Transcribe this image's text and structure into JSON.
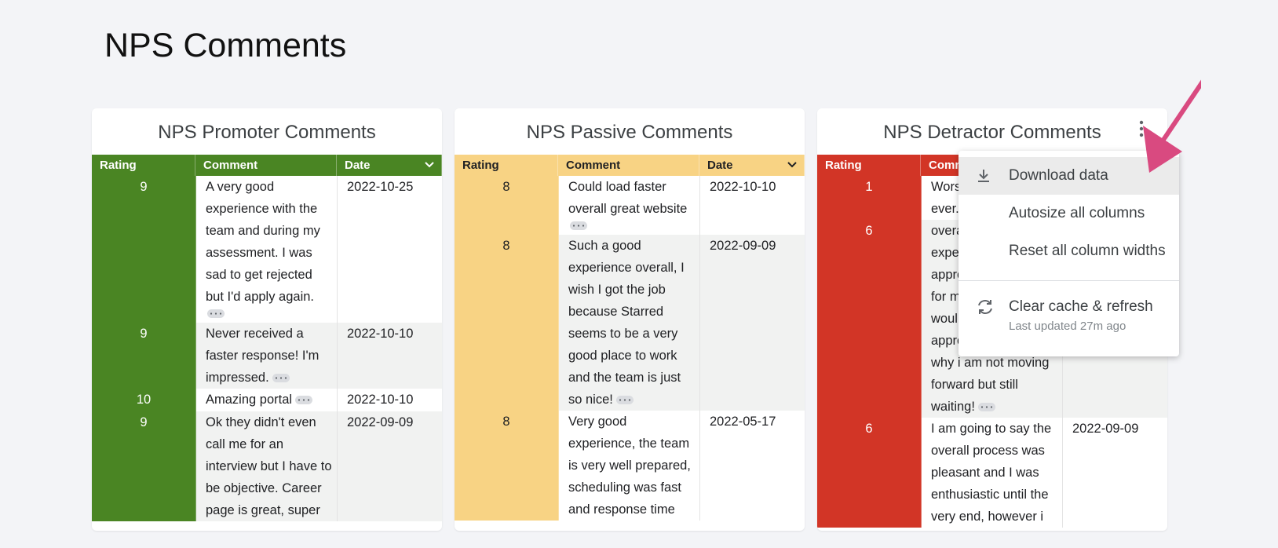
{
  "page_title": "NPS Comments",
  "panels": [
    {
      "title": "NPS Promoter Comments",
      "color": "#4a8523",
      "header_text_color": "#ffffff",
      "rating_text_color": "#ffffff",
      "headers": [
        "Rating",
        "Comment",
        "Date"
      ],
      "rows": [
        {
          "rating": 9,
          "comment_lines": [
            "A very good",
            "experience with the",
            "team and during my",
            "assessment. I was",
            "sad to get rejected",
            "but I'd apply again."
          ],
          "expand_chip": "below",
          "date": "2022-10-25"
        },
        {
          "rating": 9,
          "comment_lines": [
            "Never received a",
            "faster response! I'm",
            "impressed."
          ],
          "expand_chip": "inline",
          "date": "2022-10-10"
        },
        {
          "rating": 10,
          "comment_lines": [
            "Amazing portal"
          ],
          "expand_chip": "inline",
          "date": "2022-10-10"
        },
        {
          "rating": 9,
          "comment_lines": [
            "Ok they didn't even",
            "call me for an",
            "interview but I have to",
            "be objective. Career",
            "page is great, super"
          ],
          "date": "2022-09-09"
        }
      ]
    },
    {
      "title": "NPS Passive Comments",
      "color": "#f8d384",
      "header_text_color": "#202124",
      "rating_text_color": "#202124",
      "headers": [
        "Rating",
        "Comment",
        "Date"
      ],
      "rows": [
        {
          "rating": 8,
          "comment_lines": [
            "Could load faster",
            "overall great website"
          ],
          "expand_chip": "below",
          "date": "2022-10-10"
        },
        {
          "rating": 8,
          "comment_lines": [
            "Such a good",
            "experience overall, I",
            "wish I got the job",
            "because Starred",
            "seems to be a very",
            "good place to work",
            "and the team is just",
            "so nice!"
          ],
          "expand_chip": "inline",
          "date": "2022-09-09"
        },
        {
          "rating": 8,
          "comment_lines": [
            "Very good",
            "experience, the team",
            "is very well prepared,",
            "scheduling was fast",
            "and response time"
          ],
          "date": "2022-05-17"
        }
      ]
    },
    {
      "title": "NPS Detractor Comments",
      "color": "#d23526",
      "header_text_color": "#ffffff",
      "rating_text_color": "#ffffff",
      "headers": [
        "Rating",
        "Comm"
      ],
      "rows": [
        {
          "rating": 1,
          "comment_lines": [
            "Wors",
            "ever."
          ]
        },
        {
          "rating": 6,
          "comment_lines": [
            "overa",
            "expe",
            "appro",
            "for m",
            "woul",
            "appro",
            "why i am not moving",
            "forward but still",
            "waiting!"
          ],
          "expand_chip": "inline"
        },
        {
          "rating": 6,
          "comment_lines": [
            "I am going to say the",
            "overall process was",
            "pleasant and I was",
            "enthusiastic until the",
            "very end, however i"
          ],
          "date": "2022-09-09"
        }
      ]
    }
  ],
  "menu": {
    "items": [
      "Download data",
      "Autosize all columns",
      "Reset all column widths",
      "Clear cache & refresh"
    ],
    "last_updated": "Last updated 27m ago"
  }
}
